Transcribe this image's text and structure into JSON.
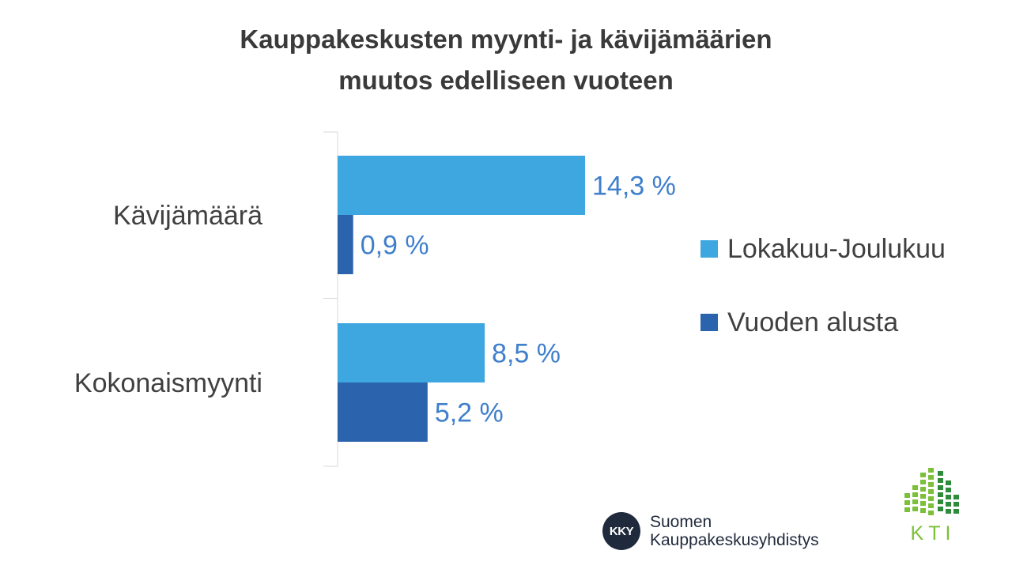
{
  "title": {
    "line1": "Kauppakeskusten myynti- ja kävijämäärien",
    "line2": "muutos edelliseen vuoteen"
  },
  "chart_data": {
    "type": "bar",
    "orientation": "horizontal",
    "categories": [
      "Kävijämäärä",
      "Kokonaismyynti"
    ],
    "series": [
      {
        "name": "Lokakuu-Joulukuu",
        "values": [
          14.3,
          8.5
        ],
        "labels": [
          "14,3 %",
          "8,5 %"
        ],
        "color": "#3ea7df"
      },
      {
        "name": "Vuoden alusta",
        "values": [
          0.9,
          5.2
        ],
        "labels": [
          "0,9 %",
          "5,2 %"
        ],
        "color": "#2b63ad"
      }
    ],
    "xlim": [
      0,
      14.3
    ],
    "legend_position": "right",
    "grid": false
  },
  "logos": {
    "kky_badge": "KKY",
    "kky_line1": "Suomen",
    "kky_line2": "Kauppakeskusyhdistys",
    "kti": "KTI"
  },
  "colors": {
    "label": "#3f7fcc",
    "axis": "#d9d9d9"
  }
}
